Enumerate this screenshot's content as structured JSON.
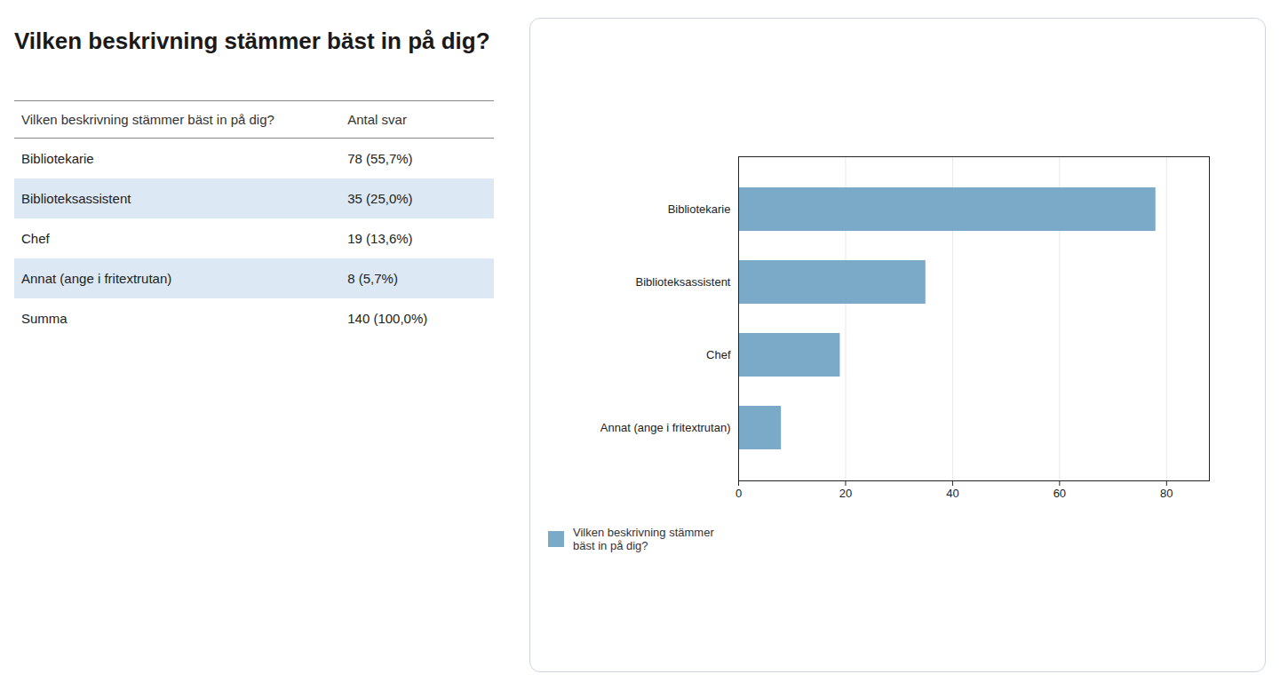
{
  "chart_data": [
    {
      "type": "table",
      "title": "Vilken beskrivning stämmer bäst in på dig?",
      "columns": [
        "Vilken beskrivning stämmer bäst in på dig?",
        "Antal svar"
      ],
      "categories": [
        "Bibliotekarie",
        "Biblioteksassistent",
        "Chef",
        "Annat (ange i fritextrutan)",
        "Summa"
      ],
      "values": [
        78,
        35,
        19,
        8,
        140
      ],
      "value_labels": [
        "78 (55,7%)",
        "35 (25,0%)",
        "19 (13,6%)",
        "8 (5,7%)",
        "140 (100,0%)"
      ],
      "colors": [
        "#FFFFFF",
        "#DCE9F5",
        "#FFFFFF",
        "#DCE9F5",
        "#FFFFFF"
      ]
    },
    {
      "type": "bar",
      "orientation": "horizontal",
      "categories": [
        "Bibliotekarie",
        "Biblioteksassistent",
        "Chef",
        "Annat (ange i fritextrutan)"
      ],
      "series": [
        {
          "name": "Vilken beskrivning stämmer\nbäst in på dig?",
          "color": "#7BAAC8",
          "values": [
            78,
            35,
            19,
            8
          ]
        }
      ],
      "xlim": [
        0,
        88
      ],
      "xticks": [
        0,
        20,
        40,
        60,
        80
      ],
      "grid": true,
      "legend": "lower left"
    }
  ]
}
